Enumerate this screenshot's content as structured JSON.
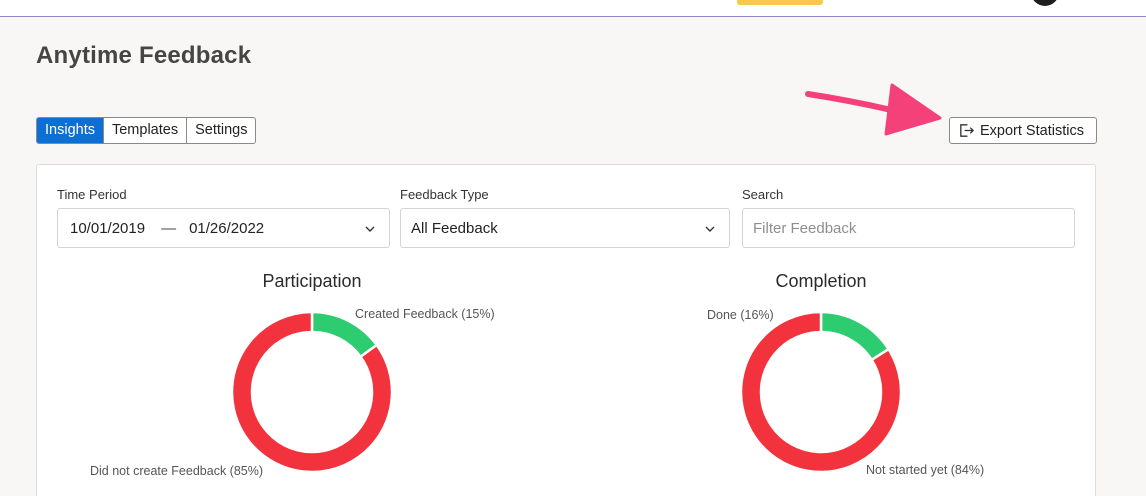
{
  "page": {
    "title": "Anytime Feedback"
  },
  "tabs": [
    {
      "label": "Insights",
      "active": true
    },
    {
      "label": "Templates",
      "active": false
    },
    {
      "label": "Settings",
      "active": false
    }
  ],
  "toolbar": {
    "export_label": "Export Statistics",
    "export_icon": "export-icon"
  },
  "filters": {
    "time_period": {
      "label": "Time Period",
      "start": "10/01/2019",
      "separator": "—",
      "end": "01/26/2022"
    },
    "feedback_type": {
      "label": "Feedback Type",
      "value": "All Feedback"
    },
    "search": {
      "label": "Search",
      "placeholder": "Filter Feedback",
      "value": ""
    }
  },
  "colors": {
    "accent": "#0b6fd6",
    "green": "#2ecc71",
    "red": "#f2323c",
    "arrow": "#f5417a"
  },
  "chart_data": [
    {
      "type": "pie",
      "title": "Participation",
      "slices": [
        {
          "label": "Created Feedback (15%)",
          "value": 15,
          "color": "#2ecc71"
        },
        {
          "label": "Did not create Feedback (85%)",
          "value": 85,
          "color": "#f2323c"
        }
      ]
    },
    {
      "type": "pie",
      "title": "Completion",
      "slices": [
        {
          "label": "Done (16%)",
          "value": 16,
          "color": "#2ecc71"
        },
        {
          "label": "Not started yet (84%)",
          "value": 84,
          "color": "#f2323c"
        }
      ]
    }
  ]
}
